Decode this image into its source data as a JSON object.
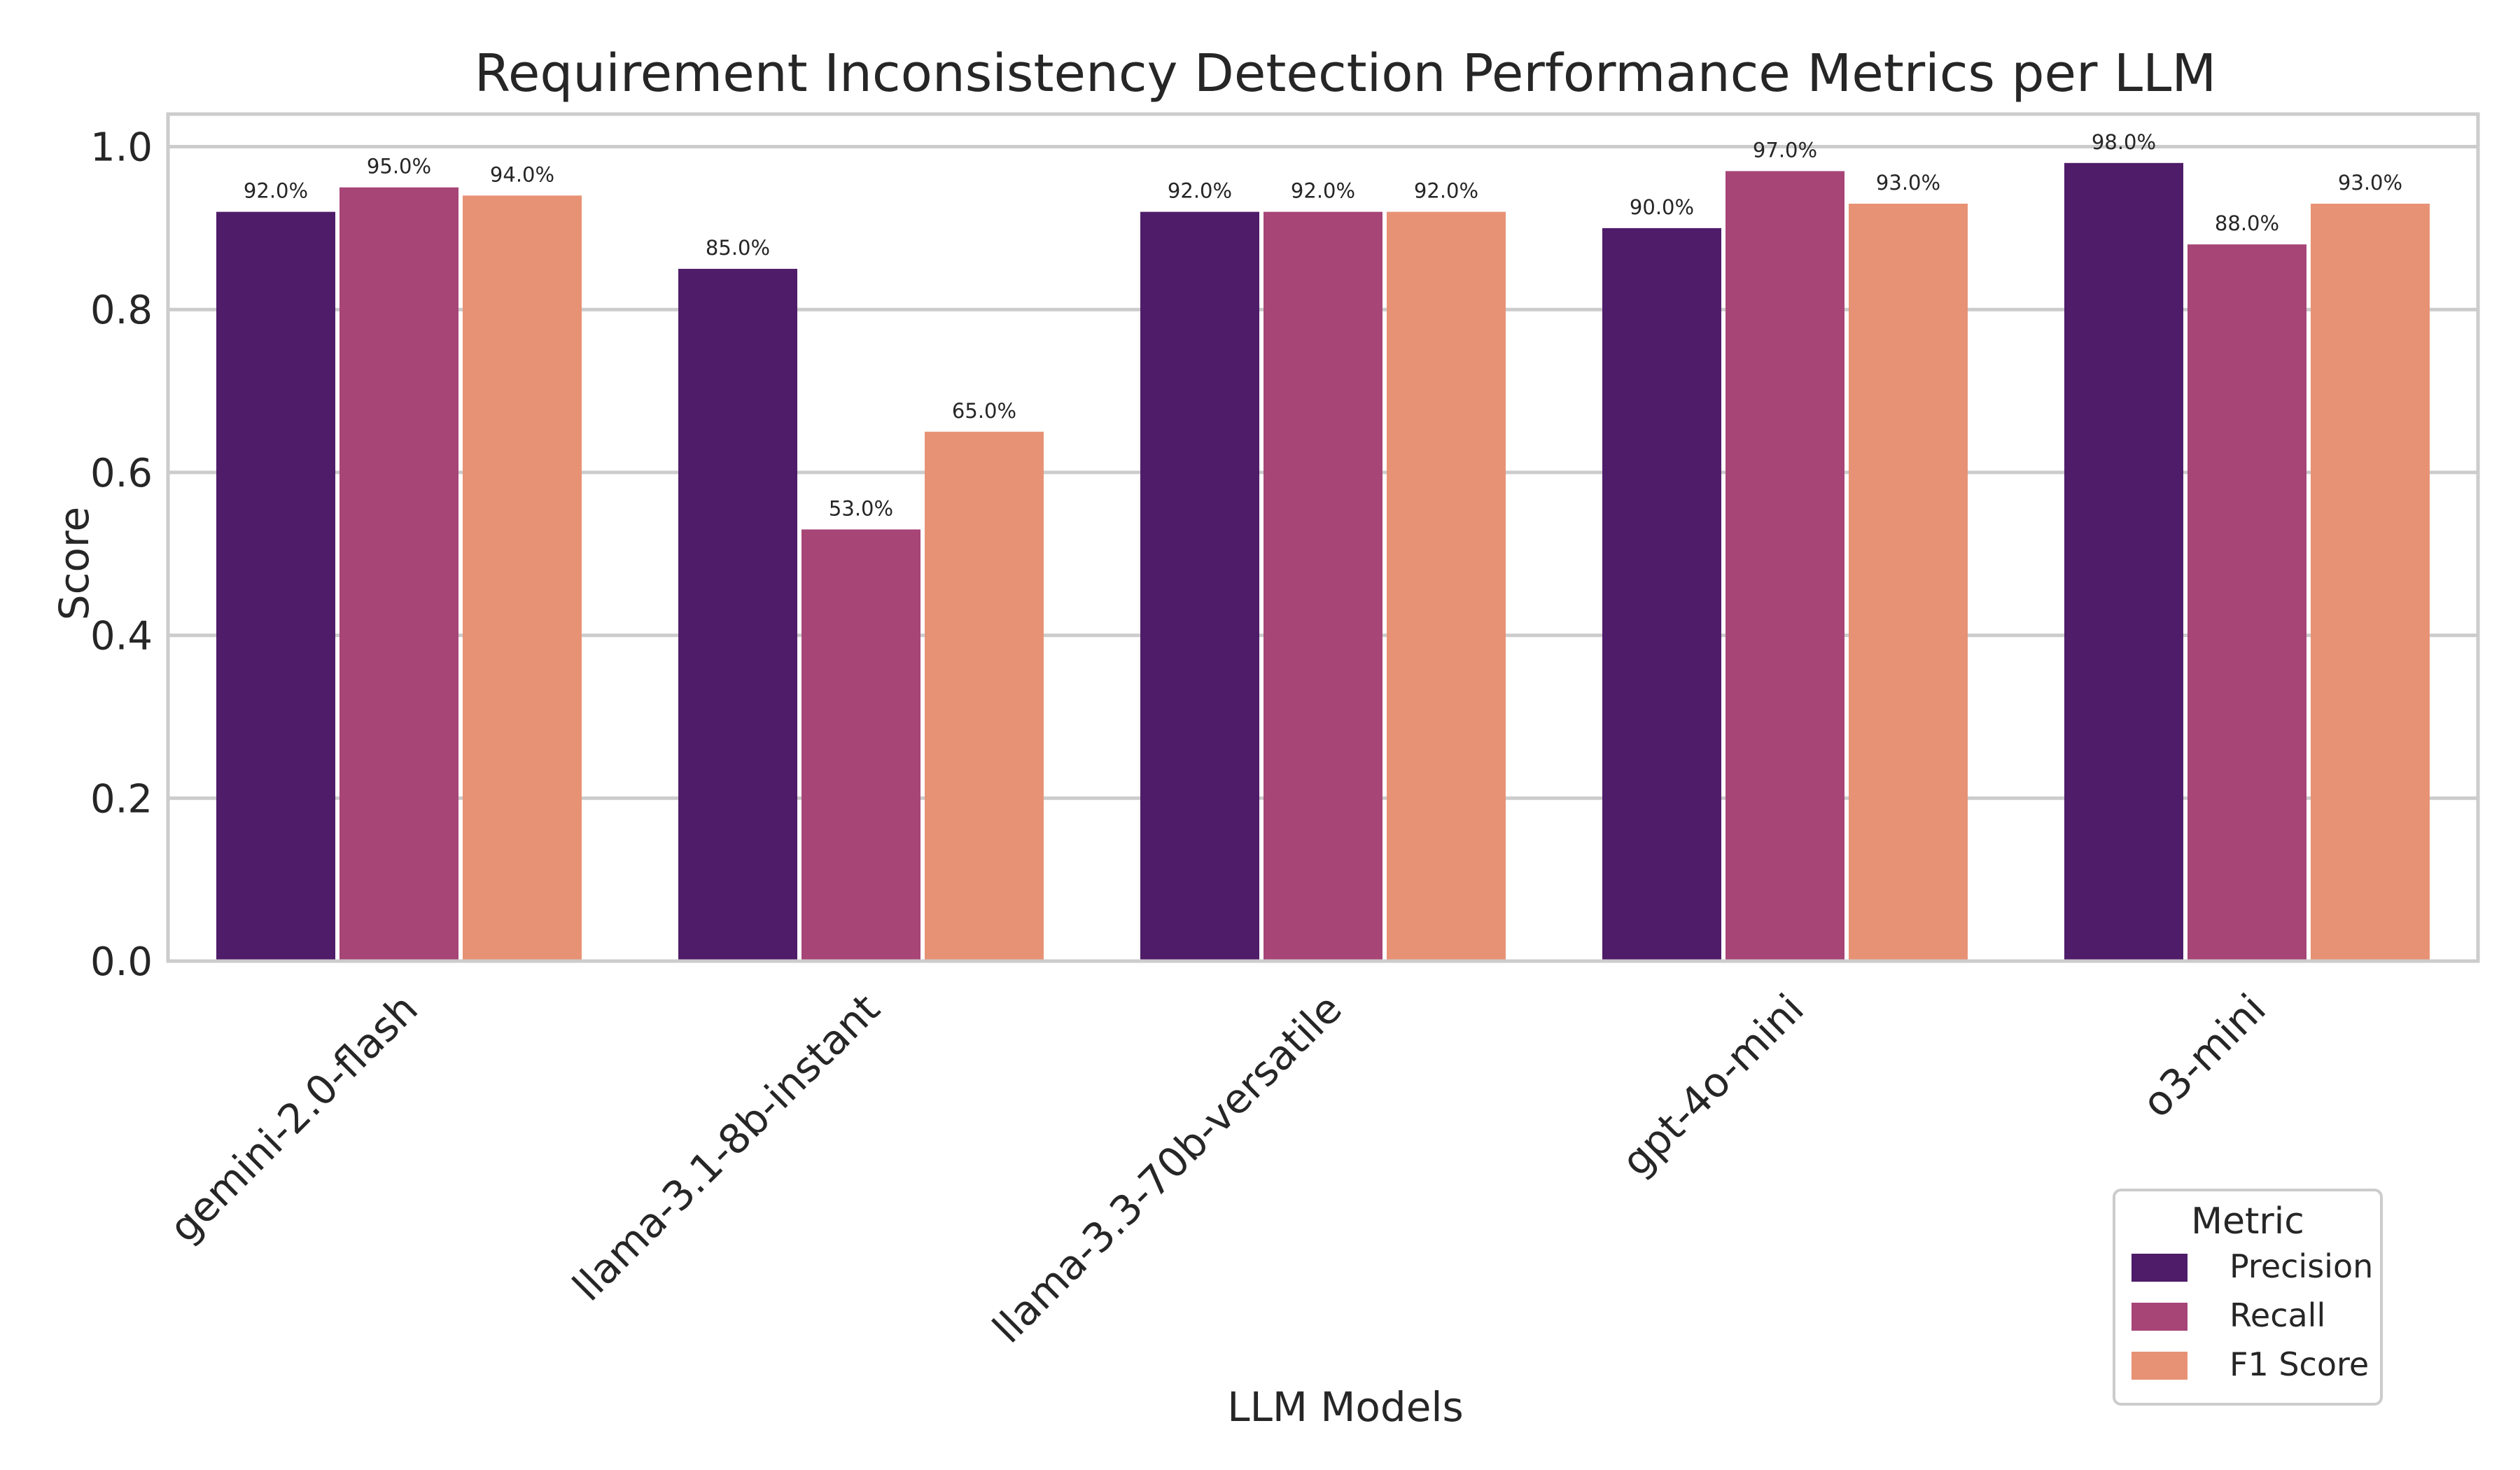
{
  "chart_data": {
    "type": "bar",
    "title": "Requirement Inconsistency Detection Performance Metrics per LLM",
    "xlabel": "LLM Models",
    "ylabel": "Score",
    "ylim": [
      0,
      1.04
    ],
    "yticks": [
      0.0,
      0.2,
      0.4,
      0.6,
      0.8,
      1.0
    ],
    "ytick_labels": [
      "0.0",
      "0.2",
      "0.4",
      "0.6",
      "0.8",
      "1.0"
    ],
    "grid": "horizontal",
    "legend_position": "lower-right",
    "legend_title": "Metric",
    "categories": [
      "gemini-2.0-flash",
      "llama-3.1-8b-instant",
      "llama-3.3-70b-versatile",
      "gpt-4o-mini",
      "o3-mini"
    ],
    "series": [
      {
        "name": "Precision",
        "color": "#4f1c69",
        "values": [
          0.92,
          0.85,
          0.92,
          0.9,
          0.98
        ],
        "labels": [
          "92.0%",
          "85.0%",
          "92.0%",
          "90.0%",
          "98.0%"
        ]
      },
      {
        "name": "Recall",
        "color": "#a74577",
        "values": [
          0.95,
          0.53,
          0.92,
          0.97,
          0.88
        ],
        "labels": [
          "95.0%",
          "53.0%",
          "92.0%",
          "97.0%",
          "88.0%"
        ]
      },
      {
        "name": "F1 Score",
        "color": "#e89275",
        "values": [
          0.94,
          0.65,
          0.92,
          0.93,
          0.93
        ],
        "labels": [
          "94.0%",
          "65.0%",
          "92.0%",
          "93.0%",
          "93.0%"
        ]
      }
    ]
  }
}
